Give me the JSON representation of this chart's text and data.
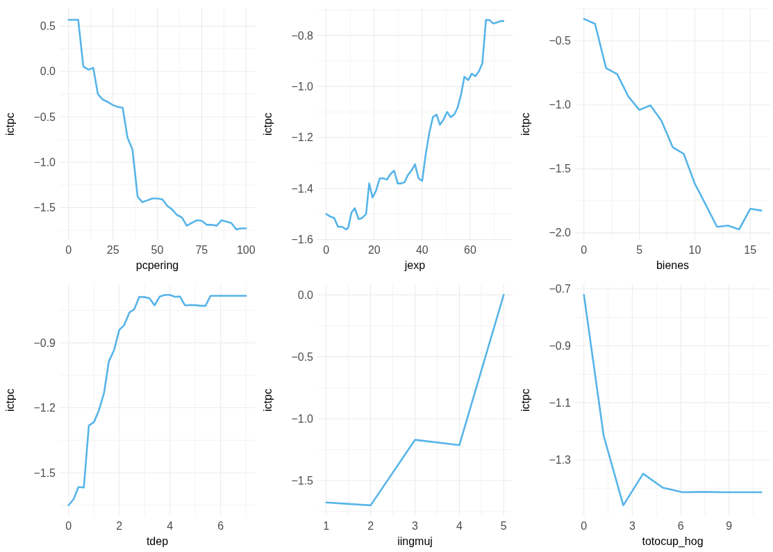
{
  "chart_data": [
    {
      "type": "line",
      "xlabel": "pcpering",
      "ylabel": "ictpc",
      "grid": true,
      "xlim": [
        -5,
        105
      ],
      "ylim": [
        -1.856,
        0.696
      ],
      "xticks": [
        0,
        25,
        50,
        75,
        100
      ],
      "yticks": [
        {
          "value": -1.5,
          "label": "−1.5"
        },
        {
          "value": -1,
          "label": "−1.0"
        },
        {
          "value": -0.5,
          "label": "−0.5"
        },
        {
          "value": 0,
          "label": "0.0"
        },
        0.5
      ],
      "x": [
        0,
        5.4,
        8.3,
        11.1,
        13.9,
        16.5,
        19.3,
        22,
        25,
        27.7,
        30.5,
        33.2,
        36,
        38.9,
        41.5,
        44.5,
        47.2,
        50,
        52.8,
        55.6,
        58.3,
        61,
        63.9,
        66.6,
        69.4,
        72.3,
        75,
        77.8,
        80.6,
        83.4,
        86.2,
        89,
        91.7,
        94.5,
        97.2,
        100
      ],
      "series": [
        {
          "color": "#56b4e9",
          "values": [
            0.57,
            0.57,
            0.055,
            0.02,
            0.04,
            -0.25,
            -0.31,
            -0.335,
            -0.37,
            -0.39,
            -0.4,
            -0.73,
            -0.86,
            -1.38,
            -1.44,
            -1.42,
            -1.4,
            -1.4,
            -1.41,
            -1.48,
            -1.52,
            -1.58,
            -1.61,
            -1.7,
            -1.67,
            -1.64,
            -1.645,
            -1.69,
            -1.69,
            -1.7,
            -1.64,
            -1.655,
            -1.67,
            -1.74,
            -1.73,
            -1.73
          ]
        }
      ]
    },
    {
      "type": "line",
      "xlabel": "jexp",
      "ylabel": "ictpc",
      "grid": true,
      "xlim": [
        -3.7,
        77.7
      ],
      "ylim": [
        -1.601,
        -0.694
      ],
      "xticks": [
        0,
        20,
        40,
        60
      ],
      "yticks": [
        {
          "value": -1.6,
          "label": "−1.6"
        },
        {
          "value": -1.4,
          "label": "−1.4"
        },
        {
          "value": -1.2,
          "label": "−1.2"
        },
        {
          "value": -1,
          "label": "−1.0"
        },
        {
          "value": -0.8,
          "label": "−0.8"
        }
      ],
      "x": [
        0,
        1.7,
        3.3,
        4.9,
        6.6,
        8.2,
        9.1,
        10.5,
        11.9,
        13.5,
        15,
        16.6,
        17.9,
        19.3,
        20.7,
        22.3,
        23.8,
        25.3,
        26.8,
        28.3,
        29.8,
        31.3,
        32.7,
        34,
        35.5,
        37,
        38.5,
        40,
        41.5,
        43,
        44.5,
        46,
        47.4,
        48.9,
        50.4,
        51.9,
        53.4,
        54.7,
        56.1,
        57.6,
        59.2,
        60.7,
        62.2,
        63.7,
        65.1,
        66.6,
        68.1,
        69.6,
        71.1,
        72.6,
        73.9
      ],
      "series": [
        {
          "color": "#56b4e9",
          "values": [
            -1.5,
            -1.51,
            -1.515,
            -1.55,
            -1.55,
            -1.56,
            -1.555,
            -1.495,
            -1.477,
            -1.52,
            -1.515,
            -1.5,
            -1.38,
            -1.435,
            -1.41,
            -1.36,
            -1.36,
            -1.365,
            -1.343,
            -1.33,
            -1.38,
            -1.38,
            -1.375,
            -1.348,
            -1.33,
            -1.305,
            -1.36,
            -1.37,
            -1.265,
            -1.18,
            -1.12,
            -1.11,
            -1.15,
            -1.13,
            -1.1,
            -1.12,
            -1.11,
            -1.085,
            -1.037,
            -0.962,
            -0.975,
            -0.95,
            -0.96,
            -0.94,
            -0.91,
            -0.74,
            -0.74,
            -0.753,
            -0.75,
            -0.744,
            -0.744
          ]
        }
      ]
    },
    {
      "type": "line",
      "xlabel": "bienes",
      "ylabel": "ictpc",
      "grid": true,
      "xlim": [
        -0.8,
        16.8
      ],
      "ylim": [
        -2.055,
        -0.246
      ],
      "xticks": [
        0,
        5,
        10,
        15
      ],
      "yticks": [
        {
          "value": -2,
          "label": "−2.0"
        },
        {
          "value": -1.5,
          "label": "−1.5"
        },
        {
          "value": -1,
          "label": "−1.0"
        },
        {
          "value": -0.5,
          "label": "−0.5"
        }
      ],
      "x": [
        0,
        1,
        2,
        3,
        4,
        5,
        6,
        7,
        8,
        9,
        10,
        11,
        12,
        13,
        14,
        15,
        16
      ],
      "series": [
        {
          "color": "#56b4e9",
          "values": [
            -0.328,
            -0.367,
            -0.714,
            -0.76,
            -0.934,
            -1.04,
            -1.004,
            -1.126,
            -1.33,
            -1.383,
            -1.616,
            -1.783,
            -1.953,
            -1.944,
            -1.973,
            -1.812,
            -1.826
          ]
        }
      ]
    },
    {
      "type": "line",
      "xlabel": "tdep",
      "ylabel": "ictpc",
      "grid": true,
      "xlim": [
        -0.35,
        7.35
      ],
      "ylim": [
        -1.699,
        -0.63
      ],
      "xticks": [
        0,
        2,
        4,
        6
      ],
      "yticks": [
        {
          "value": -1.5,
          "label": "−1.5"
        },
        {
          "value": -1.2,
          "label": "−1.2"
        },
        {
          "value": -0.9,
          "label": "−0.9"
        }
      ],
      "x": [
        0,
        0.2,
        0.39,
        0.6,
        0.8,
        1,
        1.2,
        1.4,
        1.59,
        1.79,
        2,
        2.19,
        2.4,
        2.59,
        2.79,
        3,
        3.19,
        3.39,
        3.6,
        3.8,
        4,
        4.2,
        4.39,
        4.59,
        4.8,
        5,
        5.19,
        5.4,
        5.6,
        6,
        6.5,
        7
      ],
      "series": [
        {
          "color": "#56b4e9",
          "values": [
            -1.65,
            -1.621,
            -1.566,
            -1.568,
            -1.282,
            -1.266,
            -1.211,
            -1.13,
            -0.985,
            -0.935,
            -0.84,
            -0.819,
            -0.76,
            -0.745,
            -0.688,
            -0.689,
            -0.694,
            -0.727,
            -0.686,
            -0.679,
            -0.679,
            -0.688,
            -0.686,
            -0.727,
            -0.726,
            -0.726,
            -0.729,
            -0.729,
            -0.683,
            -0.683,
            -0.683,
            -0.683
          ]
        }
      ]
    },
    {
      "type": "line",
      "xlabel": "iingmuj",
      "ylabel": "ictpc",
      "grid": true,
      "xlim": [
        0.8,
        5.2
      ],
      "ylim": [
        -1.785,
        0.085
      ],
      "xticks": [
        1,
        2,
        3,
        4,
        5
      ],
      "yticks": [
        {
          "value": -1.5,
          "label": "−1.5"
        },
        {
          "value": -1,
          "label": "−1.0"
        },
        {
          "value": -0.5,
          "label": "−0.5"
        },
        {
          "value": 0,
          "label": "0.0"
        }
      ],
      "x": [
        1,
        2,
        3,
        4,
        5
      ],
      "series": [
        {
          "color": "#56b4e9",
          "values": [
            -1.677,
            -1.7,
            -1.171,
            -1.214,
            0
          ]
        }
      ]
    },
    {
      "type": "line",
      "xlabel": "totocup_hog",
      "ylabel": "ictpc",
      "grid": true,
      "xlim": [
        -0.55,
        11.55
      ],
      "ylim": [
        -1.497,
        -0.684
      ],
      "xticks": [
        0,
        3,
        6,
        9
      ],
      "yticks": [
        {
          "value": -1.3,
          "label": "−1.3"
        },
        {
          "value": -1.1,
          "label": "−1.1"
        },
        {
          "value": -0.9,
          "label": "−0.9"
        },
        {
          "value": -0.7,
          "label": "−0.7"
        }
      ],
      "x": [
        0,
        1.22,
        2.44,
        3.67,
        4.89,
        6.11,
        7.33,
        8.56,
        9.78,
        11
      ],
      "series": [
        {
          "color": "#56b4e9",
          "values": [
            -0.721,
            -1.215,
            -1.46,
            -1.349,
            -1.398,
            -1.414,
            -1.413,
            -1.414,
            -1.414,
            -1.414
          ]
        }
      ]
    }
  ]
}
